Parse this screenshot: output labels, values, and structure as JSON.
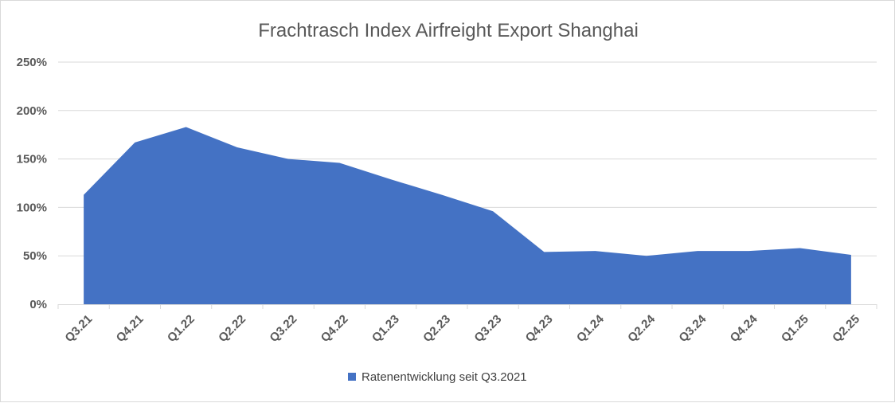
{
  "chart_data": {
    "type": "area",
    "title": "Frachtrasch  Index Airfreight Export Shanghai",
    "categories": [
      "Q3.21",
      "Q4.21",
      "Q1.22",
      "Q2.22",
      "Q3.22",
      "Q4.22",
      "Q1.23",
      "Q2.23",
      "Q3.23",
      "Q4.23",
      "Q1.24",
      "Q2.24",
      "Q3.24",
      "Q4.24",
      "Q1.25",
      "Q2.25"
    ],
    "series": [
      {
        "name": "Ratenentwicklung seit Q3.2021",
        "values": [
          113,
          167,
          183,
          162,
          150,
          146,
          129,
          113,
          96,
          54,
          55,
          50,
          55,
          55,
          58,
          51
        ],
        "color": "#4472c4"
      }
    ],
    "yticks": [
      "0%",
      "50%",
      "100%",
      "150%",
      "200%",
      "250%"
    ],
    "ylim": [
      0,
      250
    ],
    "grid": true,
    "legend_position": "bottom"
  }
}
